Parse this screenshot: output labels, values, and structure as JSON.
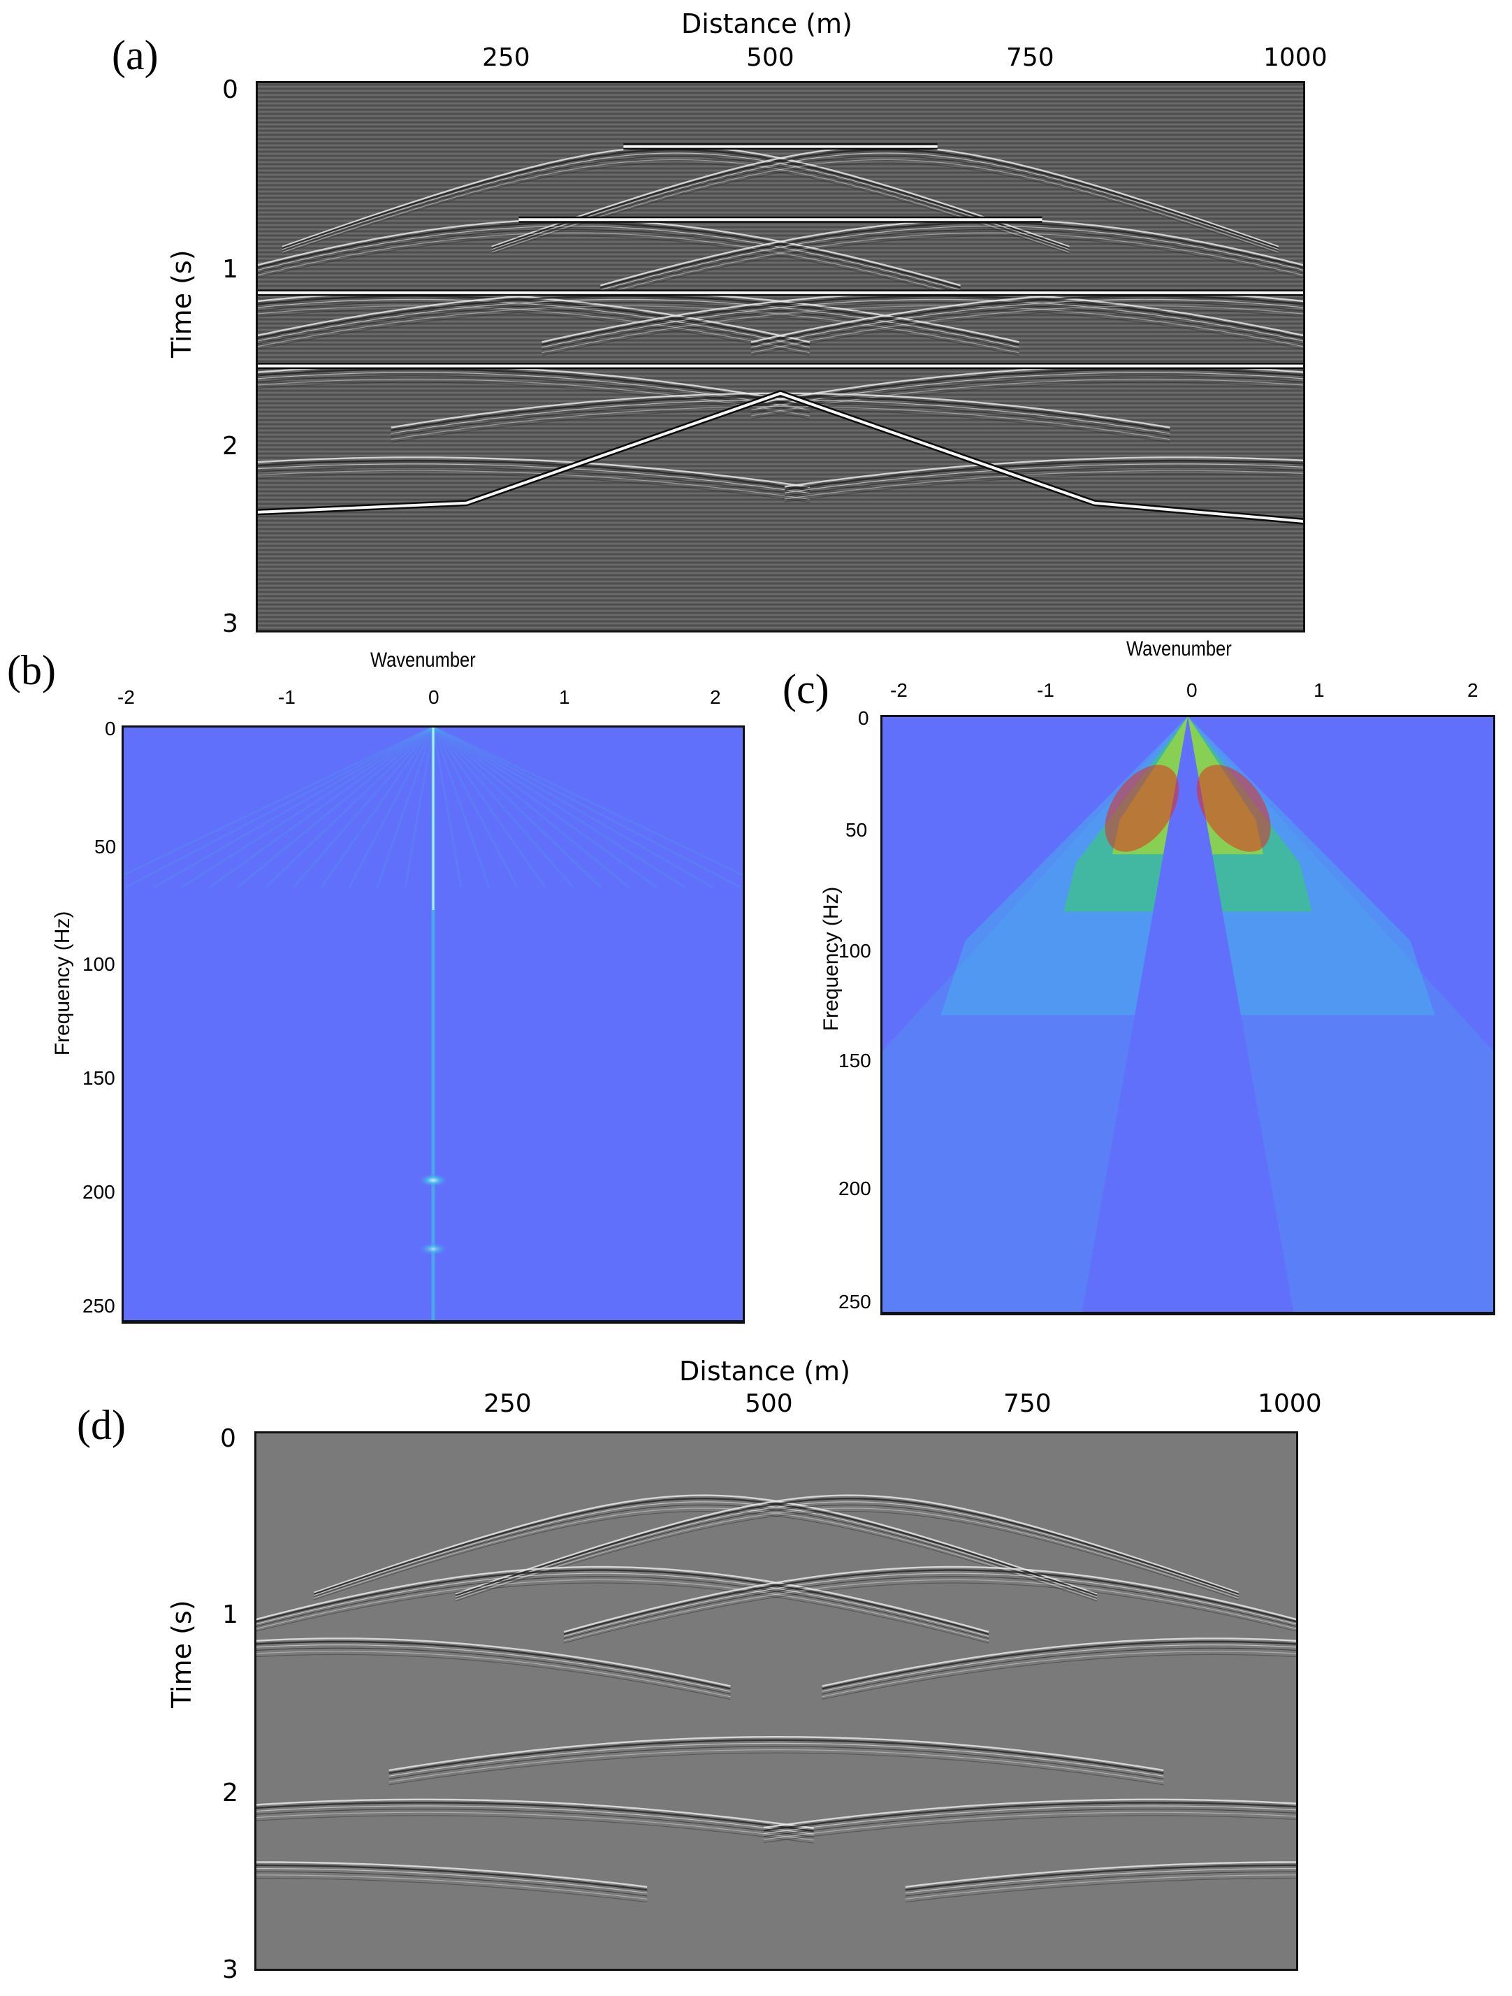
{
  "panels": {
    "a": {
      "letter": "(a)",
      "xlabel": "Distance (m)",
      "ylabel": "Time (s)",
      "xticks": [
        "250",
        "500",
        "750",
        "1000"
      ],
      "yticks": [
        "0",
        "1",
        "2",
        "3"
      ]
    },
    "b": {
      "letter": "(b)",
      "xlabel": "Wavenumber",
      "ylabel": "Frequency (Hz)",
      "xticks": [
        "-2",
        "-1",
        "0",
        "1",
        "2"
      ],
      "yticks": [
        "0",
        "50",
        "100",
        "150",
        "200",
        "250"
      ]
    },
    "c": {
      "letter": "(c)",
      "xlabel": "Wavenumber",
      "ylabel": "Frequency (Hz)",
      "xticks": [
        "-2",
        "-1",
        "0",
        "1",
        "2"
      ],
      "yticks": [
        "0",
        "50",
        "100",
        "150",
        "200",
        "250"
      ]
    },
    "d": {
      "letter": "(d)",
      "xlabel": "Distance (m)",
      "ylabel": "Time (s)",
      "xticks": [
        "250",
        "500",
        "750",
        "1000"
      ],
      "yticks": [
        "0",
        "1",
        "2",
        "3"
      ]
    }
  },
  "colors": {
    "seismic_bg": "#5c5c5c",
    "seismic_bg_filtered": "#7a7a7a",
    "fk_bg": "#6070fa",
    "fk_mid": "#40c8e8",
    "fk_high": "#30e040",
    "fk_peak": "#e03020"
  },
  "chart_data": [
    {
      "panel": "a",
      "type": "heatmap",
      "xlabel": "Distance (m)",
      "ylabel": "Time (s)",
      "xlim": [
        0,
        1000
      ],
      "ylim": [
        3,
        0
      ],
      "reflectors": [
        {
          "x": [
            350,
            650
          ],
          "t": [
            0.35,
            0.35
          ]
        },
        {
          "x": [
            250,
            750
          ],
          "t": [
            0.75,
            0.75
          ]
        },
        {
          "x": [
            0,
            1000
          ],
          "t": [
            1.15,
            1.15
          ]
        },
        {
          "x": [
            0,
            1000
          ],
          "t": [
            1.55,
            1.55
          ]
        },
        {
          "x": [
            0,
            200,
            350,
            500,
            650,
            800,
            1000
          ],
          "t": [
            2.35,
            2.3,
            2.0,
            1.7,
            2.0,
            2.3,
            2.4
          ]
        }
      ],
      "diffractors": [
        {
          "x": 400,
          "t": 0.35
        },
        {
          "x": 600,
          "t": 0.35
        },
        {
          "x": 300,
          "t": 0.75
        },
        {
          "x": 700,
          "t": 0.75
        },
        {
          "x": 150,
          "t": 1.15
        },
        {
          "x": 350,
          "t": 1.15
        },
        {
          "x": 650,
          "t": 1.15
        },
        {
          "x": 850,
          "t": 1.15
        },
        {
          "x": 150,
          "t": 1.55
        },
        {
          "x": 850,
          "t": 1.55
        },
        {
          "x": 150,
          "t": 2.05
        },
        {
          "x": 500,
          "t": 1.7
        },
        {
          "x": 880,
          "t": 2.05
        }
      ]
    },
    {
      "panel": "b",
      "type": "heatmap",
      "xlabel": "Wavenumber",
      "ylabel": "Frequency (Hz)",
      "xlim": [
        -2,
        2
      ],
      "ylim": [
        260,
        0
      ],
      "energy": [
        {
          "k": 0,
          "f_range": [
            0,
            260
          ],
          "note_level": 0.6
        },
        {
          "k": 0,
          "f": 198,
          "level": 0.8
        },
        {
          "k": 0,
          "f": 228,
          "level": 0.6
        }
      ]
    },
    {
      "panel": "c",
      "type": "heatmap",
      "xlabel": "Wavenumber",
      "ylabel": "Frequency (Hz)",
      "xlim": [
        -2,
        2
      ],
      "ylim": [
        260,
        0
      ],
      "energy_lobes": [
        {
          "k_center": -0.5,
          "f_center": 40,
          "peak": 1.0
        },
        {
          "k_center": 0.5,
          "f_center": 40,
          "peak": 1.0
        }
      ]
    },
    {
      "panel": "d",
      "type": "heatmap",
      "xlabel": "Distance (m)",
      "ylabel": "Time (s)",
      "xlim": [
        0,
        1000
      ],
      "ylim": [
        3,
        0
      ],
      "diffractors": [
        {
          "x": 430,
          "t": 0.35
        },
        {
          "x": 570,
          "t": 0.35
        },
        {
          "x": 330,
          "t": 0.75
        },
        {
          "x": 670,
          "t": 0.75
        },
        {
          "x": 80,
          "t": 1.15
        },
        {
          "x": 920,
          "t": 1.15
        },
        {
          "x": 160,
          "t": 2.05
        },
        {
          "x": 500,
          "t": 1.7
        },
        {
          "x": 860,
          "t": 2.05
        },
        {
          "x": 0,
          "t": 2.4
        },
        {
          "x": 1000,
          "t": 2.4
        }
      ]
    }
  ]
}
